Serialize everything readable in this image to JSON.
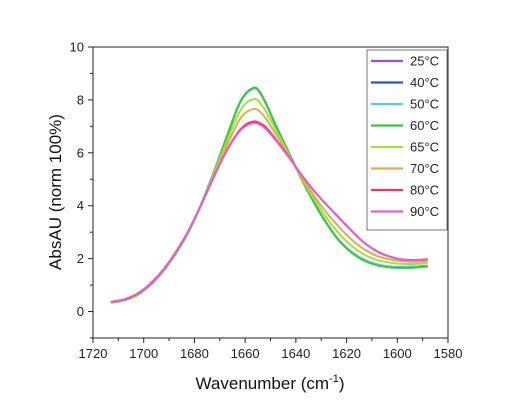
{
  "chart_data": {
    "type": "line",
    "title": "",
    "xlabel": "Wavenumber (cm",
    "xlabel_sup": "-1",
    "xlabel_suffix": ")",
    "ylabel": "AbsAU (norm 100%)",
    "xlim": [
      1720,
      1580
    ],
    "ylim": [
      -1,
      10
    ],
    "x_ticks": [
      "1720",
      "1700",
      "1680",
      "1660",
      "1640",
      "1620",
      "1600",
      "1580"
    ],
    "y_ticks": [
      "0",
      "2",
      "4",
      "6",
      "8",
      "10"
    ],
    "grid": false,
    "legend_position": "top-right",
    "x": [
      1713,
      1708,
      1703,
      1698,
      1693,
      1688,
      1683,
      1678,
      1673,
      1668,
      1663,
      1660,
      1657,
      1655,
      1652,
      1648,
      1643,
      1638,
      1633,
      1628,
      1623,
      1618,
      1613,
      1608,
      1603,
      1598,
      1593,
      1588
    ],
    "series": [
      {
        "name": "25°C",
        "color": "#9a4de0",
        "values": [
          0.34,
          0.42,
          0.6,
          0.95,
          1.45,
          2.1,
          2.9,
          3.9,
          5.1,
          6.4,
          7.7,
          8.2,
          8.42,
          8.38,
          7.9,
          7.05,
          6.05,
          5.05,
          4.15,
          3.35,
          2.7,
          2.25,
          1.95,
          1.78,
          1.7,
          1.68,
          1.7,
          1.72
        ]
      },
      {
        "name": "40°C",
        "color": "#2b4fd8",
        "values": [
          0.34,
          0.42,
          0.6,
          0.95,
          1.45,
          2.1,
          2.9,
          3.9,
          5.1,
          6.4,
          7.7,
          8.2,
          8.42,
          8.38,
          7.9,
          7.05,
          6.05,
          5.05,
          4.15,
          3.35,
          2.7,
          2.25,
          1.95,
          1.78,
          1.7,
          1.68,
          1.7,
          1.72
        ]
      },
      {
        "name": "50°C",
        "color": "#5bc8ee",
        "values": [
          0.34,
          0.42,
          0.6,
          0.95,
          1.45,
          2.1,
          2.9,
          3.9,
          5.1,
          6.4,
          7.7,
          8.2,
          8.42,
          8.38,
          7.9,
          7.05,
          6.05,
          5.05,
          4.15,
          3.35,
          2.7,
          2.25,
          1.95,
          1.78,
          1.7,
          1.68,
          1.7,
          1.72
        ]
      },
      {
        "name": "60°C",
        "color": "#3ec63e",
        "values": [
          0.34,
          0.42,
          0.6,
          0.95,
          1.45,
          2.1,
          2.9,
          3.9,
          5.1,
          6.4,
          7.7,
          8.22,
          8.45,
          8.4,
          7.92,
          7.05,
          6.05,
          5.05,
          4.15,
          3.35,
          2.68,
          2.22,
          1.92,
          1.75,
          1.67,
          1.65,
          1.66,
          1.7
        ]
      },
      {
        "name": "65°C",
        "color": "#a8dc44",
        "values": [
          0.35,
          0.43,
          0.62,
          0.97,
          1.47,
          2.12,
          2.92,
          3.9,
          5.05,
          6.25,
          7.4,
          7.85,
          8.02,
          7.98,
          7.6,
          6.88,
          5.98,
          5.08,
          4.28,
          3.55,
          2.95,
          2.48,
          2.15,
          1.95,
          1.85,
          1.8,
          1.8,
          1.82
        ]
      },
      {
        "name": "70°C",
        "color": "#d8b050",
        "values": [
          0.36,
          0.44,
          0.64,
          0.99,
          1.49,
          2.14,
          2.93,
          3.9,
          5.0,
          6.1,
          7.12,
          7.5,
          7.65,
          7.62,
          7.32,
          6.72,
          5.95,
          5.13,
          4.4,
          3.75,
          3.2,
          2.72,
          2.35,
          2.1,
          1.97,
          1.9,
          1.88,
          1.9
        ]
      },
      {
        "name": "80°C",
        "color": "#e23a63",
        "values": [
          0.37,
          0.45,
          0.65,
          1.0,
          1.5,
          2.15,
          2.94,
          3.9,
          4.95,
          5.95,
          6.75,
          7.05,
          7.18,
          7.16,
          6.98,
          6.52,
          5.88,
          5.2,
          4.58,
          4.05,
          3.55,
          3.05,
          2.6,
          2.28,
          2.08,
          1.97,
          1.95,
          1.98
        ]
      },
      {
        "name": "90°C",
        "color": "#e25fcf",
        "values": [
          0.37,
          0.45,
          0.65,
          1.0,
          1.5,
          2.15,
          2.94,
          3.9,
          4.95,
          5.95,
          6.72,
          7.0,
          7.12,
          7.1,
          6.92,
          6.48,
          5.86,
          5.2,
          4.58,
          4.05,
          3.55,
          3.05,
          2.6,
          2.27,
          2.07,
          1.96,
          1.94,
          1.97
        ]
      }
    ]
  }
}
